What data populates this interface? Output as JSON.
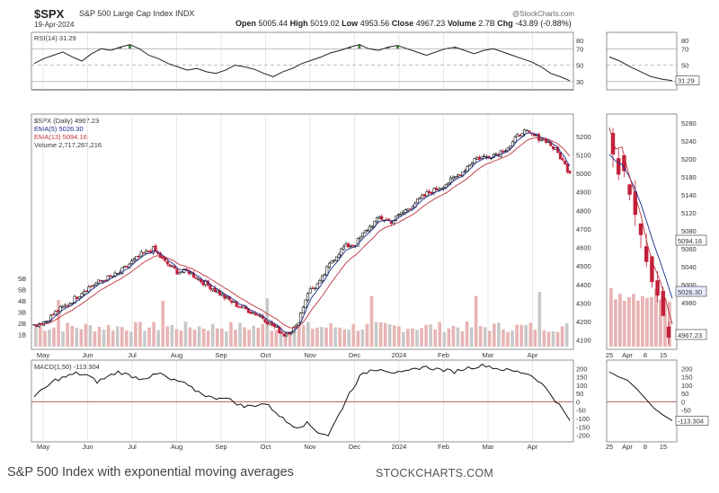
{
  "header": {
    "symbol": "$SPX",
    "name": "S&P 500 Large Cap Index",
    "exchange": "INDX",
    "date": "19-Apr-2024",
    "open_label": "Open",
    "open": "5005.44",
    "high_label": "High",
    "high": "5019.02",
    "low_label": "Low",
    "low": "4953.56",
    "close_label": "Close",
    "close": "4967.23",
    "volume_label": "Volume",
    "volume": "2.7B",
    "chg_label": "Chg",
    "chg": "-43.89 (-0.88%)",
    "site": "@StockCharts.com"
  },
  "caption": {
    "title": "S&P 500 Index with exponential moving averages",
    "source": "STOCKCHARTS.COM"
  },
  "colors": {
    "up": "#111111",
    "down": "#c21f3a",
    "ema5": "#1a2a8a",
    "ema13": "#c0333f",
    "rsi_fill": "#3c8a3c",
    "volume": "#e8b4b4",
    "zero_line": "#b55050"
  },
  "chart_data": [
    {
      "id": "rsi",
      "type": "line",
      "title": "RSI(14) 31.29",
      "ylim": [
        20,
        90
      ],
      "ticks": [
        80,
        70,
        50,
        30
      ],
      "reference_levels": [
        70,
        50,
        30
      ],
      "main_values": [
        52,
        58,
        62,
        66,
        60,
        55,
        64,
        70,
        68,
        72,
        75,
        70,
        62,
        58,
        52,
        48,
        44,
        46,
        42,
        40,
        44,
        50,
        48,
        45,
        40,
        36,
        42,
        46,
        52,
        56,
        60,
        65,
        68,
        72,
        75,
        70,
        68,
        72,
        74,
        70,
        66,
        62,
        66,
        70,
        72,
        68,
        64,
        68,
        70,
        66,
        62,
        58,
        54,
        48,
        40,
        36,
        31
      ],
      "zoom_values": [
        60,
        55,
        48,
        42,
        36,
        33,
        31.29
      ],
      "zoom_label": "31.29"
    },
    {
      "id": "price",
      "type": "candlestick",
      "title": "$SPX (Daily) 4967.23",
      "legend": [
        "EMA(5) 5026.30",
        "EMA(13) 5094.16",
        "Volume 2,717,267,216"
      ],
      "ylim": [
        4050,
        5320
      ],
      "ticks": [
        "5200",
        "5100",
        "5000",
        "4900",
        "4800",
        "4700",
        "4600",
        "4500",
        "4400",
        "4300",
        "4200",
        "4100"
      ],
      "zoom_ticks": [
        "5280",
        "5240",
        "5200",
        "5180",
        "5140",
        "5120",
        "5080",
        "5060",
        "5040",
        "5000",
        "4980"
      ],
      "zoom_labels": [
        "5094.16",
        "5026.30",
        "4967.23"
      ],
      "volume_ticks": [
        "5B",
        "5B",
        "4B",
        "3B",
        "2B",
        "1B"
      ],
      "weekly_close": [
        4180,
        4205,
        4260,
        4300,
        4360,
        4400,
        4430,
        4455,
        4510,
        4560,
        4590,
        4520,
        4470,
        4470,
        4420,
        4380,
        4330,
        4290,
        4260,
        4230,
        4180,
        4130,
        4170,
        4360,
        4410,
        4530,
        4600,
        4620,
        4700,
        4760,
        4740,
        4790,
        4840,
        4890,
        4920,
        4960,
        5010,
        5080,
        5090,
        5110,
        5150,
        5230,
        5200,
        5180,
        5110,
        5000
      ],
      "zoom_ohlc_close": [
        5240,
        5210,
        5215,
        5180,
        5150,
        5120,
        5080,
        5050,
        5030,
        5000,
        4967.23
      ]
    },
    {
      "id": "macd",
      "type": "line",
      "title": "MACD(1,50) -113.304",
      "ylim": [
        -240,
        250
      ],
      "ticks": [
        "200",
        "150",
        "100",
        "50",
        "0",
        "-50",
        "-100",
        "-150",
        "-200"
      ],
      "zoom_ticks": [
        "200",
        "150",
        "100",
        "50",
        "0",
        "-50",
        "-113.304"
      ],
      "values": [
        30,
        80,
        130,
        150,
        170,
        160,
        120,
        150,
        180,
        160,
        140,
        150,
        170,
        130,
        120,
        80,
        50,
        20,
        30,
        0,
        -30,
        -20,
        -10,
        -60,
        -120,
        -150,
        -130,
        -180,
        -200,
        -80,
        50,
        150,
        190,
        200,
        180,
        170,
        190,
        210,
        200,
        190,
        180,
        200,
        210,
        220,
        200,
        190,
        180,
        170,
        130,
        60,
        -20,
        -113
      ],
      "zoom_values": [
        180,
        150,
        130,
        80,
        20,
        -40,
        -80,
        -113
      ]
    }
  ],
  "x_axis": {
    "months": [
      "May",
      "Jun",
      "Jul",
      "Aug",
      "Sep",
      "Oct",
      "Nov",
      "Dec",
      "2024",
      "Feb",
      "Mar",
      "Apr"
    ],
    "zoom": [
      "25",
      "Apr",
      "8",
      "15"
    ]
  }
}
